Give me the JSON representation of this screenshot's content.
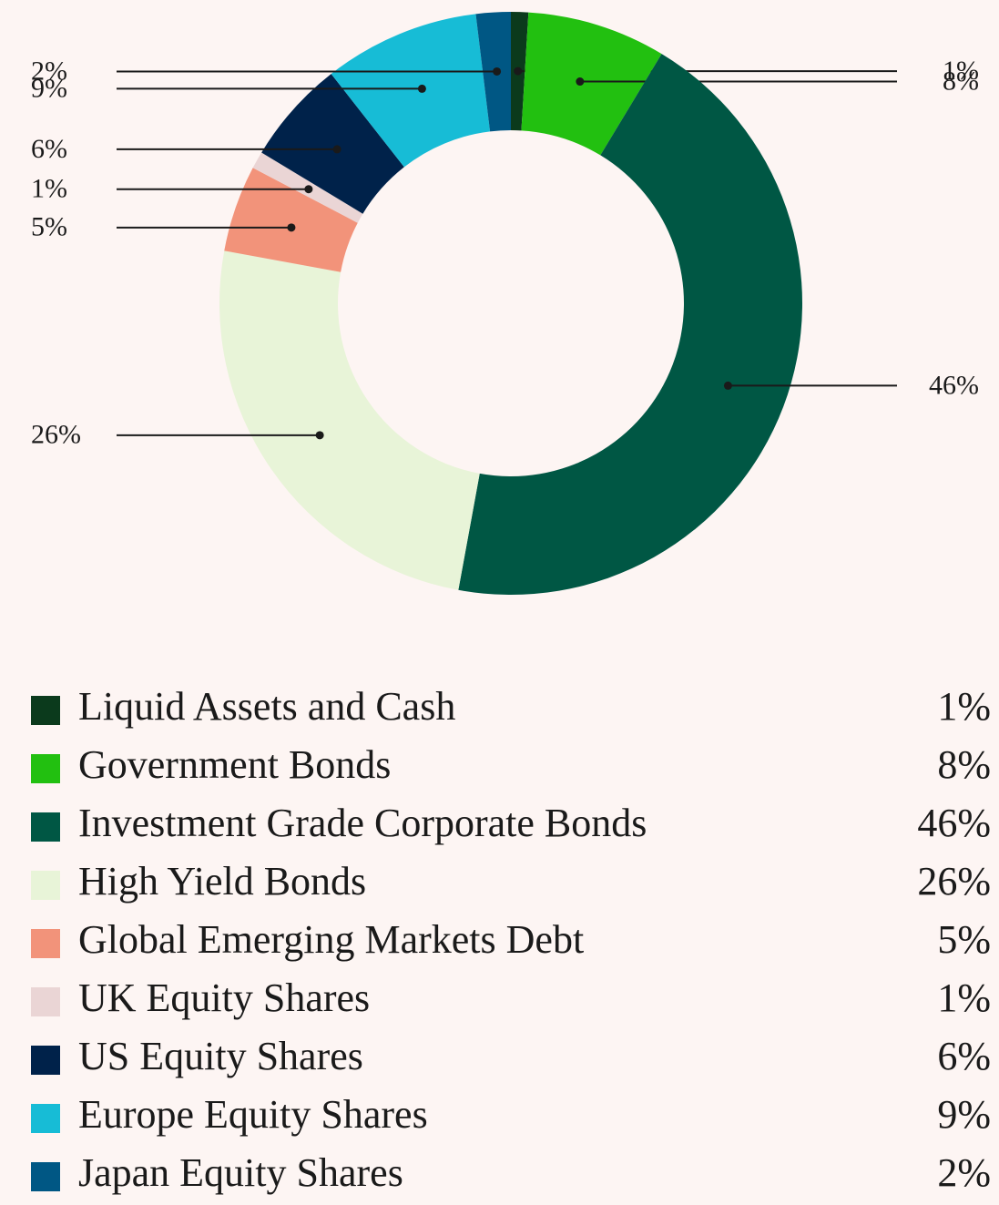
{
  "chart_data": {
    "type": "donut",
    "categories": [
      "Liquid Assets and Cash",
      "Government Bonds",
      "Investment Grade Corporate Bonds",
      "High Yield Bonds",
      "Global Emerging Markets Debt",
      "UK Equity Shares",
      "US Equity Shares",
      "Europe Equity Shares",
      "Japan Equity Shares"
    ],
    "values": [
      1,
      8,
      46,
      26,
      5,
      1,
      6,
      9,
      2
    ],
    "value_labels": [
      "1%",
      "8%",
      "46%",
      "26%",
      "5%",
      "1%",
      "6%",
      "9%",
      "2%"
    ],
    "colors": [
      "#0b3a1c",
      "#22c010",
      "#005744",
      "#e8f4d8",
      "#f2937a",
      "#ead5d5",
      "#00224a",
      "#17bcd6",
      "#005784"
    ]
  }
}
